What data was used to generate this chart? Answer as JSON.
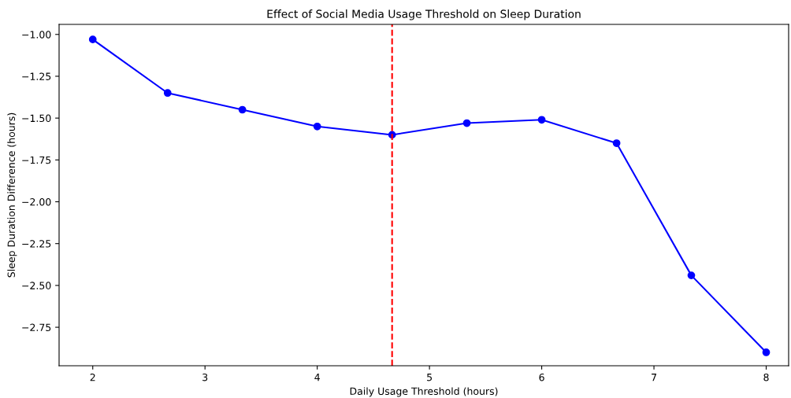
{
  "chart_data": {
    "type": "line",
    "title": "Effect of Social Media Usage Threshold on Sleep Duration",
    "xlabel": "Daily Usage Threshold (hours)",
    "ylabel": "Sleep Duration Difference (hours)",
    "x": [
      2,
      2.667,
      3.333,
      4,
      4.667,
      5.333,
      6,
      6.667,
      7.333,
      8
    ],
    "series": [
      {
        "color": "#0000ff",
        "values": [
          -1.03,
          -1.35,
          -1.45,
          -1.55,
          -1.6,
          -1.53,
          -1.51,
          -1.65,
          -2.44,
          -2.9
        ]
      }
    ],
    "xlim": [
      1.7,
      8.2
    ],
    "ylim": [
      -2.98,
      -0.94
    ],
    "xticks": [
      2,
      3,
      4,
      5,
      6,
      7,
      8
    ],
    "yticks": [
      {
        "value": -1.0,
        "label": "−1.00"
      },
      {
        "value": -1.25,
        "label": "−1.25"
      },
      {
        "value": -1.5,
        "label": "−1.50"
      },
      {
        "value": -1.75,
        "label": "−1.75"
      },
      {
        "value": -2.0,
        "label": "−2.00"
      },
      {
        "value": -2.25,
        "label": "−2.25"
      },
      {
        "value": -2.5,
        "label": "−2.50"
      },
      {
        "value": -2.75,
        "label": "−2.75"
      }
    ],
    "ref_lines": [
      {
        "axis": "x",
        "value": 4.667,
        "color": "#ff0000",
        "line_style": "dashed"
      }
    ],
    "marker": "circle",
    "line_style": "solid",
    "grid": false
  }
}
